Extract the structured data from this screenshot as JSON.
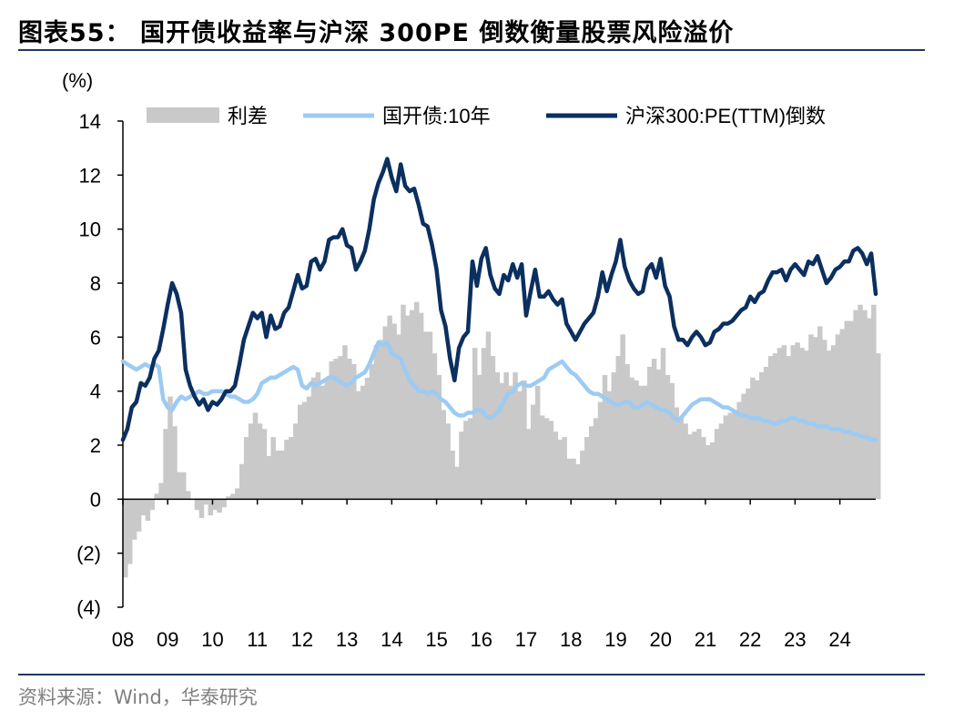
{
  "header": {
    "title": "图表55：  国开债收益率与沪深 300PE 倒数衡量股票风险溢价"
  },
  "footer": {
    "source": "资料来源：Wind，华泰研究"
  },
  "colors": {
    "spread": "#c9c9c9",
    "bond": "#9ccbf3",
    "pe_inverse": "#0b2f5f",
    "axis": "#000000",
    "rule": "#1f3864"
  },
  "chart_data": {
    "type": "line",
    "title": "",
    "ylabel": "(%)",
    "ylim": [
      -4,
      14
    ],
    "yticks": [
      14,
      12,
      10,
      8,
      6,
      4,
      2,
      0,
      -2,
      -4
    ],
    "ytick_labels": [
      "14",
      "12",
      "10",
      "8",
      "6",
      "4",
      "2",
      "0",
      "(2)",
      "(4)"
    ],
    "xlim": [
      2008.0,
      2024.8
    ],
    "xticks": [
      2008,
      2009,
      2010,
      2011,
      2012,
      2013,
      2014,
      2015,
      2016,
      2017,
      2018,
      2019,
      2020,
      2021,
      2022,
      2023,
      2024
    ],
    "xtick_labels": [
      "08",
      "09",
      "10",
      "11",
      "12",
      "13",
      "14",
      "15",
      "16",
      "17",
      "18",
      "19",
      "20",
      "21",
      "22",
      "23",
      "24"
    ],
    "grid": false,
    "legend_position": "top",
    "series": [
      {
        "name": "利差",
        "kind": "area",
        "x": [
          2008.0,
          2008.1,
          2008.2,
          2008.3,
          2008.4,
          2008.5,
          2008.6,
          2008.7,
          2008.8,
          2008.9,
          2009.0,
          2009.1,
          2009.2,
          2009.3,
          2009.4,
          2009.5,
          2009.6,
          2009.7,
          2009.8,
          2009.9,
          2010.0,
          2010.1,
          2010.2,
          2010.3,
          2010.4,
          2010.5,
          2010.6,
          2010.7,
          2010.8,
          2010.9,
          2011.0,
          2011.1,
          2011.2,
          2011.3,
          2011.4,
          2011.5,
          2011.6,
          2011.7,
          2011.8,
          2011.9,
          2012.0,
          2012.1,
          2012.2,
          2012.3,
          2012.4,
          2012.5,
          2012.6,
          2012.7,
          2012.8,
          2012.9,
          2013.0,
          2013.1,
          2013.2,
          2013.3,
          2013.4,
          2013.5,
          2013.6,
          2013.7,
          2013.8,
          2013.9,
          2014.0,
          2014.1,
          2014.2,
          2014.3,
          2014.4,
          2014.5,
          2014.6,
          2014.7,
          2014.8,
          2014.9,
          2015.0,
          2015.1,
          2015.2,
          2015.3,
          2015.4,
          2015.5,
          2015.6,
          2015.7,
          2015.8,
          2015.9,
          2016.0,
          2016.1,
          2016.2,
          2016.3,
          2016.4,
          2016.5,
          2016.6,
          2016.7,
          2016.8,
          2016.9,
          2017.0,
          2017.1,
          2017.2,
          2017.3,
          2017.4,
          2017.5,
          2017.6,
          2017.7,
          2017.8,
          2017.9,
          2018.0,
          2018.1,
          2018.2,
          2018.3,
          2018.4,
          2018.5,
          2018.6,
          2018.7,
          2018.8,
          2018.9,
          2019.0,
          2019.1,
          2019.2,
          2019.3,
          2019.4,
          2019.5,
          2019.6,
          2019.7,
          2019.8,
          2019.9,
          2020.0,
          2020.1,
          2020.2,
          2020.3,
          2020.4,
          2020.5,
          2020.6,
          2020.7,
          2020.8,
          2020.9,
          2021.0,
          2021.1,
          2021.2,
          2021.3,
          2021.4,
          2021.5,
          2021.6,
          2021.7,
          2021.8,
          2021.9,
          2022.0,
          2022.1,
          2022.2,
          2022.3,
          2022.4,
          2022.5,
          2022.6,
          2022.7,
          2022.8,
          2022.9,
          2023.0,
          2023.1,
          2023.2,
          2023.3,
          2023.4,
          2023.5,
          2023.6,
          2023.7,
          2023.8,
          2023.9,
          2024.0,
          2024.1,
          2024.2,
          2024.3,
          2024.4,
          2024.5,
          2024.6,
          2024.7,
          2024.8
        ],
        "values": [
          -2.9,
          -2.4,
          -1.5,
          -1.2,
          -0.6,
          -0.8,
          -0.4,
          0.2,
          0.6,
          2.6,
          3.8,
          2.7,
          1.0,
          1.0,
          0.3,
          0.0,
          -0.4,
          -0.7,
          -0.2,
          -0.6,
          -0.4,
          -0.5,
          -0.3,
          0.1,
          0.2,
          0.4,
          1.3,
          2.3,
          2.8,
          3.2,
          2.8,
          2.6,
          1.6,
          2.3,
          1.8,
          1.8,
          2.2,
          2.3,
          2.8,
          3.5,
          3.6,
          3.8,
          4.5,
          4.7,
          4.2,
          4.4,
          5.1,
          5.2,
          5.3,
          5.7,
          5.2,
          5.0,
          4.0,
          4.2,
          4.5,
          5.0,
          5.7,
          5.9,
          6.4,
          6.8,
          6.5,
          6.1,
          7.2,
          6.8,
          7.0,
          7.3,
          6.9,
          6.2,
          6.2,
          5.4,
          4.6,
          3.3,
          2.8,
          1.8,
          1.2,
          2.5,
          2.9,
          3.0,
          5.6,
          4.6,
          5.6,
          6.2,
          5.3,
          4.7,
          4.3,
          4.7,
          4.2,
          4.7,
          4.0,
          4.4,
          2.6,
          3.5,
          4.2,
          3.1,
          3.0,
          2.9,
          2.5,
          2.2,
          2.3,
          1.5,
          1.5,
          1.3,
          1.8,
          2.3,
          2.7,
          3.0,
          3.6,
          4.6,
          4.0,
          4.7,
          5.3,
          6.1,
          5.0,
          4.5,
          4.4,
          4.2,
          4.2,
          4.9,
          5.2,
          4.8,
          5.6,
          4.6,
          4.3,
          3.4,
          3.0,
          2.8,
          2.4,
          2.5,
          2.6,
          2.3,
          2.0,
          2.1,
          2.6,
          2.8,
          3.1,
          3.2,
          3.3,
          3.6,
          3.9,
          4.1,
          4.5,
          4.4,
          4.7,
          4.9,
          5.3,
          5.4,
          5.6,
          5.7,
          5.3,
          5.7,
          5.8,
          5.6,
          5.5,
          6.1,
          6.0,
          6.4,
          5.9,
          5.5,
          5.7,
          6.1,
          6.3,
          6.6,
          6.6,
          7.0,
          7.2,
          7.0,
          6.7,
          7.2,
          5.4
        ]
      },
      {
        "name": "国开债:10年",
        "kind": "line",
        "x": [
          2008.0,
          2008.1,
          2008.2,
          2008.3,
          2008.4,
          2008.5,
          2008.6,
          2008.7,
          2008.8,
          2008.9,
          2009.0,
          2009.1,
          2009.2,
          2009.3,
          2009.4,
          2009.5,
          2009.6,
          2009.7,
          2009.8,
          2009.9,
          2010.0,
          2010.1,
          2010.2,
          2010.3,
          2010.4,
          2010.5,
          2010.6,
          2010.7,
          2010.8,
          2010.9,
          2011.0,
          2011.1,
          2011.2,
          2011.3,
          2011.4,
          2011.5,
          2011.6,
          2011.7,
          2011.8,
          2011.9,
          2012.0,
          2012.1,
          2012.2,
          2012.3,
          2012.4,
          2012.5,
          2012.6,
          2012.7,
          2012.8,
          2012.9,
          2013.0,
          2013.1,
          2013.2,
          2013.3,
          2013.4,
          2013.5,
          2013.6,
          2013.7,
          2013.8,
          2013.9,
          2014.0,
          2014.1,
          2014.2,
          2014.3,
          2014.4,
          2014.5,
          2014.6,
          2014.7,
          2014.8,
          2014.9,
          2015.0,
          2015.1,
          2015.2,
          2015.3,
          2015.4,
          2015.5,
          2015.6,
          2015.7,
          2015.8,
          2015.9,
          2016.0,
          2016.1,
          2016.2,
          2016.3,
          2016.4,
          2016.5,
          2016.6,
          2016.7,
          2016.8,
          2016.9,
          2017.0,
          2017.1,
          2017.2,
          2017.3,
          2017.4,
          2017.5,
          2017.6,
          2017.7,
          2017.8,
          2017.9,
          2018.0,
          2018.1,
          2018.2,
          2018.3,
          2018.4,
          2018.5,
          2018.6,
          2018.7,
          2018.8,
          2018.9,
          2019.0,
          2019.1,
          2019.2,
          2019.3,
          2019.4,
          2019.5,
          2019.6,
          2019.7,
          2019.8,
          2019.9,
          2020.0,
          2020.1,
          2020.2,
          2020.3,
          2020.4,
          2020.5,
          2020.6,
          2020.7,
          2020.8,
          2020.9,
          2021.0,
          2021.1,
          2021.2,
          2021.3,
          2021.4,
          2021.5,
          2021.6,
          2021.7,
          2021.8,
          2021.9,
          2022.0,
          2022.1,
          2022.2,
          2022.3,
          2022.4,
          2022.5,
          2022.6,
          2022.7,
          2022.8,
          2022.9,
          2023.0,
          2023.1,
          2023.2,
          2023.3,
          2023.4,
          2023.5,
          2023.6,
          2023.7,
          2023.8,
          2023.9,
          2024.0,
          2024.1,
          2024.2,
          2024.3,
          2024.4,
          2024.5,
          2024.6,
          2024.7,
          2024.8
        ],
        "values": [
          5.1,
          5.0,
          4.9,
          4.8,
          4.9,
          5.0,
          4.9,
          5.0,
          4.9,
          3.7,
          3.4,
          3.3,
          3.6,
          3.8,
          3.7,
          3.8,
          3.9,
          4.0,
          3.9,
          3.9,
          4.0,
          4.0,
          4.0,
          3.9,
          3.8,
          3.8,
          3.7,
          3.6,
          3.6,
          3.7,
          3.9,
          4.3,
          4.4,
          4.5,
          4.5,
          4.6,
          4.7,
          4.8,
          4.9,
          4.8,
          4.2,
          4.1,
          4.3,
          4.2,
          4.3,
          4.4,
          4.5,
          4.5,
          4.4,
          4.3,
          4.2,
          4.3,
          4.5,
          4.6,
          4.7,
          5.0,
          5.4,
          5.8,
          5.7,
          5.8,
          5.4,
          5.3,
          5.2,
          4.8,
          4.4,
          4.2,
          4.0,
          4.0,
          3.9,
          4.0,
          3.9,
          3.7,
          3.6,
          3.4,
          3.2,
          3.1,
          3.1,
          3.2,
          3.2,
          3.3,
          3.3,
          3.1,
          3.0,
          3.1,
          3.3,
          3.6,
          3.9,
          4.0,
          4.2,
          4.3,
          4.2,
          4.2,
          4.3,
          4.4,
          4.5,
          4.8,
          4.9,
          5.0,
          5.1,
          4.9,
          4.7,
          4.6,
          4.4,
          4.2,
          4.0,
          3.9,
          3.9,
          3.8,
          3.7,
          3.6,
          3.5,
          3.5,
          3.6,
          3.6,
          3.4,
          3.4,
          3.5,
          3.6,
          3.5,
          3.4,
          3.3,
          3.3,
          3.2,
          3.0,
          2.9,
          3.1,
          3.3,
          3.5,
          3.6,
          3.7,
          3.7,
          3.7,
          3.6,
          3.5,
          3.4,
          3.4,
          3.3,
          3.2,
          3.1,
          3.1,
          3.0,
          3.0,
          3.0,
          2.9,
          2.9,
          2.8,
          2.8,
          2.9,
          2.9,
          3.0,
          3.0,
          2.9,
          2.9,
          2.8,
          2.8,
          2.7,
          2.7,
          2.7,
          2.6,
          2.6,
          2.6,
          2.5,
          2.5,
          2.4,
          2.4,
          2.3,
          2.3,
          2.2,
          2.2
        ]
      },
      {
        "name": "沪深300:PE(TTM)倒数",
        "kind": "line",
        "x": [
          2008.0,
          2008.1,
          2008.2,
          2008.3,
          2008.4,
          2008.5,
          2008.6,
          2008.7,
          2008.8,
          2008.9,
          2009.0,
          2009.1,
          2009.2,
          2009.3,
          2009.4,
          2009.5,
          2009.6,
          2009.7,
          2009.8,
          2009.9,
          2010.0,
          2010.1,
          2010.2,
          2010.3,
          2010.4,
          2010.5,
          2010.6,
          2010.7,
          2010.8,
          2010.9,
          2011.0,
          2011.1,
          2011.2,
          2011.3,
          2011.4,
          2011.5,
          2011.6,
          2011.7,
          2011.8,
          2011.9,
          2012.0,
          2012.1,
          2012.2,
          2012.3,
          2012.4,
          2012.5,
          2012.6,
          2012.7,
          2012.8,
          2012.9,
          2013.0,
          2013.1,
          2013.2,
          2013.3,
          2013.4,
          2013.5,
          2013.6,
          2013.7,
          2013.8,
          2013.9,
          2014.0,
          2014.1,
          2014.2,
          2014.3,
          2014.4,
          2014.5,
          2014.6,
          2014.7,
          2014.8,
          2014.9,
          2015.0,
          2015.1,
          2015.2,
          2015.3,
          2015.4,
          2015.5,
          2015.6,
          2015.7,
          2015.8,
          2015.9,
          2016.0,
          2016.1,
          2016.2,
          2016.3,
          2016.4,
          2016.5,
          2016.6,
          2016.7,
          2016.8,
          2016.9,
          2017.0,
          2017.1,
          2017.2,
          2017.3,
          2017.4,
          2017.5,
          2017.6,
          2017.7,
          2017.8,
          2017.9,
          2018.0,
          2018.1,
          2018.2,
          2018.3,
          2018.4,
          2018.5,
          2018.6,
          2018.7,
          2018.8,
          2018.9,
          2019.0,
          2019.1,
          2019.2,
          2019.3,
          2019.4,
          2019.5,
          2019.6,
          2019.7,
          2019.8,
          2019.9,
          2020.0,
          2020.1,
          2020.2,
          2020.3,
          2020.4,
          2020.5,
          2020.6,
          2020.7,
          2020.8,
          2020.9,
          2021.0,
          2021.1,
          2021.2,
          2021.3,
          2021.4,
          2021.5,
          2021.6,
          2021.7,
          2021.8,
          2021.9,
          2022.0,
          2022.1,
          2022.2,
          2022.3,
          2022.4,
          2022.5,
          2022.6,
          2022.7,
          2022.8,
          2022.9,
          2023.0,
          2023.1,
          2023.2,
          2023.3,
          2023.4,
          2023.5,
          2023.6,
          2023.7,
          2023.8,
          2023.9,
          2024.0,
          2024.1,
          2024.2,
          2024.3,
          2024.4,
          2024.5,
          2024.6,
          2024.7,
          2024.8
        ],
        "values": [
          2.2,
          2.6,
          3.4,
          3.6,
          4.3,
          4.2,
          4.5,
          5.2,
          5.5,
          6.3,
          7.2,
          8.0,
          7.6,
          6.9,
          4.8,
          4.2,
          3.8,
          3.5,
          3.7,
          3.3,
          3.6,
          3.5,
          3.7,
          4.0,
          4.0,
          4.2,
          5.0,
          5.9,
          6.4,
          6.9,
          6.7,
          6.9,
          6.0,
          6.8,
          6.3,
          6.4,
          6.9,
          7.1,
          7.7,
          8.3,
          7.8,
          7.9,
          8.8,
          8.9,
          8.5,
          8.8,
          9.6,
          9.7,
          9.7,
          10.0,
          9.4,
          9.3,
          8.5,
          8.8,
          9.2,
          10.0,
          11.1,
          11.7,
          12.1,
          12.6,
          11.9,
          11.4,
          12.4,
          11.6,
          11.4,
          11.5,
          10.9,
          10.2,
          10.1,
          9.4,
          8.5,
          7.0,
          6.4,
          5.2,
          4.4,
          5.6,
          6.0,
          6.2,
          8.8,
          7.9,
          8.9,
          9.3,
          8.3,
          7.8,
          7.6,
          8.3,
          8.1,
          8.7,
          8.2,
          8.7,
          6.8,
          7.7,
          8.5,
          7.5,
          7.5,
          7.7,
          7.4,
          7.2,
          7.4,
          6.5,
          6.2,
          5.9,
          6.2,
          6.5,
          6.7,
          6.9,
          7.5,
          8.4,
          7.7,
          8.3,
          8.8,
          9.6,
          8.6,
          8.1,
          7.8,
          7.6,
          7.7,
          8.5,
          8.7,
          8.2,
          8.9,
          7.9,
          7.5,
          6.4,
          5.9,
          5.9,
          5.7,
          6.0,
          6.2,
          6.0,
          5.7,
          5.8,
          6.2,
          6.3,
          6.5,
          6.5,
          6.6,
          6.8,
          7.0,
          7.1,
          7.5,
          7.3,
          7.6,
          7.7,
          8.1,
          8.4,
          8.4,
          8.5,
          8.1,
          8.5,
          8.7,
          8.5,
          8.3,
          8.8,
          8.7,
          9.0,
          8.5,
          8.0,
          8.2,
          8.5,
          8.6,
          8.8,
          8.8,
          9.2,
          9.3,
          9.1,
          8.7,
          9.1,
          7.6
        ]
      }
    ]
  }
}
